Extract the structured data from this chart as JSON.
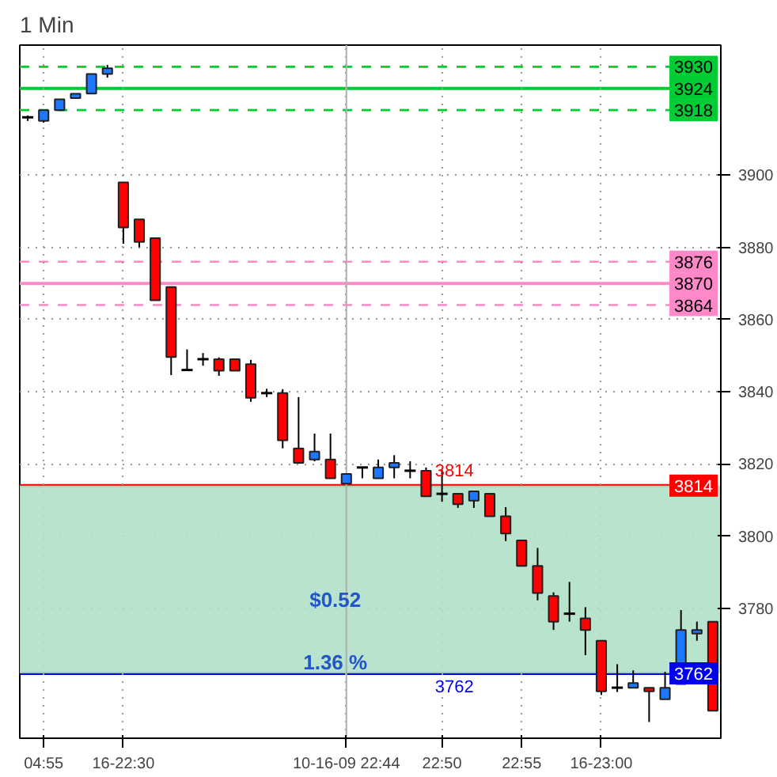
{
  "chart_data": {
    "type": "candlestick",
    "title": "1 Min",
    "categories": [
      null,
      "04:55",
      null,
      null,
      null,
      null,
      "16-22:30",
      null,
      null,
      null,
      null,
      null,
      null,
      null,
      null,
      null,
      null,
      null,
      null,
      null,
      "10-16-09 22:44",
      null,
      null,
      null,
      null,
      null,
      "22:50",
      null,
      null,
      null,
      null,
      "22:55",
      null,
      null,
      null,
      null,
      "16-23:00",
      null,
      null,
      null,
      null,
      null,
      null,
      null
    ],
    "ohlc": [
      [
        3916,
        3916.5,
        3915,
        3916
      ],
      [
        3915,
        3918,
        3914.5,
        3918
      ],
      [
        3918,
        3921,
        3918,
        3921
      ],
      [
        3921.3,
        3922.5,
        3921.3,
        3922.5
      ],
      [
        3922.6,
        3928,
        3922.6,
        3928
      ],
      [
        3928,
        3930.5,
        3927,
        3929.6
      ],
      [
        3898,
        3898,
        3881,
        3885.5
      ],
      [
        3887.7,
        3887.7,
        3880,
        3881.5
      ],
      [
        3882.5,
        3882.5,
        3865.3,
        3865.3
      ],
      [
        3869,
        3869,
        3844.6,
        3849.6
      ],
      [
        3846,
        3851.7,
        3846,
        3846
      ],
      [
        3849,
        3850.7,
        3847.2,
        3849
      ],
      [
        3849,
        3849.5,
        3844.4,
        3845.8
      ],
      [
        3849,
        3849,
        3845.8,
        3845.8
      ],
      [
        3847.6,
        3848.8,
        3837.2,
        3838.3
      ],
      [
        3839.6,
        3840.8,
        3838.5,
        3839.6
      ],
      [
        3839.6,
        3840.7,
        3824.3,
        3826.5
      ],
      [
        3824.3,
        3838.5,
        3820.3,
        3820.3
      ],
      [
        3821.2,
        3828.4,
        3820.7,
        3823.4
      ],
      [
        3821.2,
        3828.4,
        3816,
        3816
      ],
      [
        3814.5,
        3817.2,
        3814.5,
        3817.2
      ],
      [
        3819,
        3819,
        3816,
        3819
      ],
      [
        3816,
        3821.2,
        3816,
        3819
      ],
      [
        3819,
        3822.4,
        3816,
        3820.3
      ],
      [
        3818.1,
        3820.7,
        3816,
        3818.1
      ],
      [
        3818.1,
        3819,
        3811,
        3811
      ],
      [
        3811.7,
        3818.4,
        3809.5,
        3811.7
      ],
      [
        3811.7,
        3811.7,
        3807.8,
        3808.8
      ],
      [
        3809.8,
        3812.4,
        3807.8,
        3812.4
      ],
      [
        3811.7,
        3811.7,
        3805.5,
        3805.5
      ],
      [
        3805.5,
        3808,
        3798.6,
        3800.7
      ],
      [
        3798.8,
        3798.8,
        3791.7,
        3791.7
      ],
      [
        3791.7,
        3796.7,
        3782.2,
        3784.2
      ],
      [
        3783.4,
        3784.4,
        3774,
        3776.3
      ],
      [
        3778.5,
        3787.3,
        3776.3,
        3778.5
      ],
      [
        3777.2,
        3780.3,
        3767,
        3774
      ],
      [
        3771,
        3771,
        3756,
        3757
      ],
      [
        3758,
        3764.5,
        3756.8,
        3758
      ],
      [
        3758,
        3762.8,
        3758,
        3759.3
      ],
      [
        3758,
        3758,
        3748.5,
        3757
      ],
      [
        3754.8,
        3762.4,
        3754.8,
        3758
      ],
      [
        3759,
        3779.5,
        3759,
        3774
      ],
      [
        3773,
        3776.3,
        3771,
        3774
      ],
      [
        3776.3,
        3776.3,
        3751.6,
        3751.6
      ]
    ],
    "colors": [
      "#000000",
      "#1e78ff",
      "#1e78ff",
      "#1e78ff",
      "#1e78ff",
      "#1e78ff",
      "#ff0000",
      "#ff0000",
      "#ff0000",
      "#ff0000",
      "#000000",
      "#000000",
      "#ff0000",
      "#ff0000",
      "#ff0000",
      "#000000",
      "#ff0000",
      "#ff0000",
      "#1e78ff",
      "#ff0000",
      "#1e78ff",
      "#000000",
      "#1e78ff",
      "#1e78ff",
      "#000000",
      "#ff0000",
      "#000000",
      "#ff0000",
      "#1e78ff",
      "#ff0000",
      "#ff0000",
      "#ff0000",
      "#ff0000",
      "#ff0000",
      "#000000",
      "#ff0000",
      "#ff0000",
      "#000000",
      "#1e78ff",
      "#ff0000",
      "#1e78ff",
      "#1e78ff",
      "#1e78ff",
      "#ff0000"
    ],
    "ylim": [
      3744,
      3936
    ],
    "yticks": [
      3780,
      3800,
      3820,
      3840,
      3860,
      3880,
      3900
    ],
    "grid": true,
    "ref_lines": [
      {
        "axis": "y",
        "value": 3930,
        "label": "3930",
        "color": "#00cc33",
        "line_style": "dashed"
      },
      {
        "axis": "y",
        "value": 3924,
        "label": "3924",
        "color": "#00cc33",
        "line_style": "solid"
      },
      {
        "axis": "y",
        "value": 3918,
        "label": "3918",
        "color": "#00cc33",
        "line_style": "dashed"
      },
      {
        "axis": "y",
        "value": 3876,
        "label": "3876",
        "color": "#ff88c8",
        "line_style": "dashed"
      },
      {
        "axis": "y",
        "value": 3870,
        "label": "3870",
        "color": "#ff88c8",
        "line_style": "solid"
      },
      {
        "axis": "y",
        "value": 3864,
        "label": "3864",
        "color": "#ff88c8",
        "line_style": "dashed"
      },
      {
        "axis": "y",
        "value": 3814,
        "label": "3814",
        "color": "#ff0000",
        "line_style": "solid"
      },
      {
        "axis": "y",
        "value": 3762,
        "label": "3762",
        "color": "#0000ee",
        "line_style": "solid"
      },
      {
        "axis": "x",
        "value": "10-16-09 22:44",
        "color": "#b0b0b0",
        "line_style": "solid"
      }
    ],
    "bands": [
      {
        "axis": "y",
        "from": 3762,
        "to": 3814,
        "color": "#b0e0c8"
      }
    ],
    "annotations": [
      {
        "text": "3814",
        "y": 3814
      },
      {
        "text": "3762",
        "y": 3762
      },
      "$0.52",
      "1.36 %"
    ]
  }
}
